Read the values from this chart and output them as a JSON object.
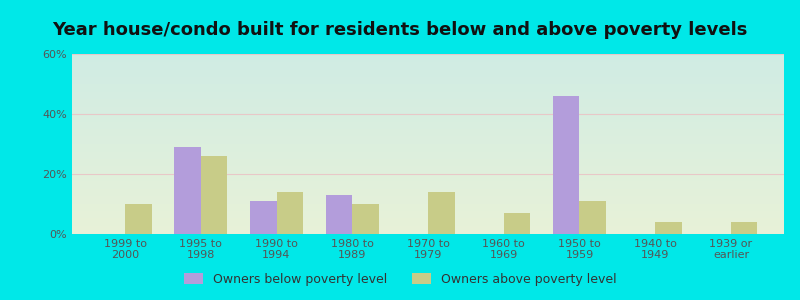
{
  "title": "Year house/condo built for residents below and above poverty levels",
  "categories": [
    "1999 to\n2000",
    "1995 to\n1998",
    "1990 to\n1994",
    "1980 to\n1989",
    "1970 to\n1979",
    "1960 to\n1969",
    "1950 to\n1959",
    "1940 to\n1949",
    "1939 or\nearlier"
  ],
  "below_poverty": [
    0,
    29,
    11,
    13,
    0,
    0,
    46,
    0,
    0
  ],
  "above_poverty": [
    10,
    26,
    14,
    10,
    14,
    7,
    11,
    4,
    4
  ],
  "below_color": "#b39ddb",
  "above_color": "#c8cc88",
  "ylim": [
    0,
    60
  ],
  "yticks": [
    0,
    20,
    40,
    60
  ],
  "ytick_labels": [
    "0%",
    "20%",
    "40%",
    "60%"
  ],
  "bar_width": 0.35,
  "legend_below": "Owners below poverty level",
  "legend_above": "Owners above poverty level",
  "title_fontsize": 13,
  "tick_fontsize": 8,
  "legend_fontsize": 9,
  "outer_bg": "#00e8e8",
  "grid_color": "#e8c8c8",
  "bg_top": "#d0ece4",
  "bg_bottom": "#e8f2d8"
}
